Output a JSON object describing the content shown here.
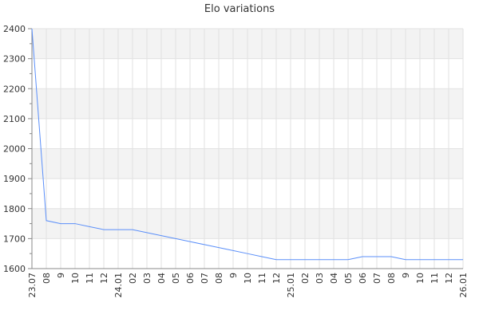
{
  "chart_data": {
    "type": "line",
    "title": "Elo variations",
    "xlabel": "",
    "ylabel": "",
    "x_tick_labels": [
      "23.07",
      "08",
      "9",
      "10",
      "11",
      "12",
      "24.01",
      "02",
      "03",
      "04",
      "05",
      "06",
      "07",
      "08",
      "9",
      "10",
      "11",
      "12",
      "25.01",
      "02",
      "03",
      "04",
      "05",
      "06",
      "07",
      "08",
      "9",
      "10",
      "11",
      "12",
      "26.01"
    ],
    "y_ticks": [
      1600,
      1700,
      1800,
      1900,
      2000,
      2100,
      2200,
      2300,
      2400
    ],
    "ylim": [
      1600,
      2400
    ],
    "grid": true,
    "series": [
      {
        "values": [
          2400,
          1760,
          1750,
          1750,
          1740,
          1730,
          1730,
          1730,
          1720,
          1710,
          1700,
          1690,
          1680,
          1670,
          1660,
          1650,
          1640,
          1630,
          1630,
          1630,
          1630,
          1630,
          1630,
          1640,
          1640,
          1640,
          1630,
          1630,
          1630,
          1630,
          1630
        ]
      }
    ],
    "colors": {
      "line": "#5b8ff9",
      "band": "#f3f3f3",
      "grid": "#e2e2e2",
      "axis": "#888888"
    }
  }
}
